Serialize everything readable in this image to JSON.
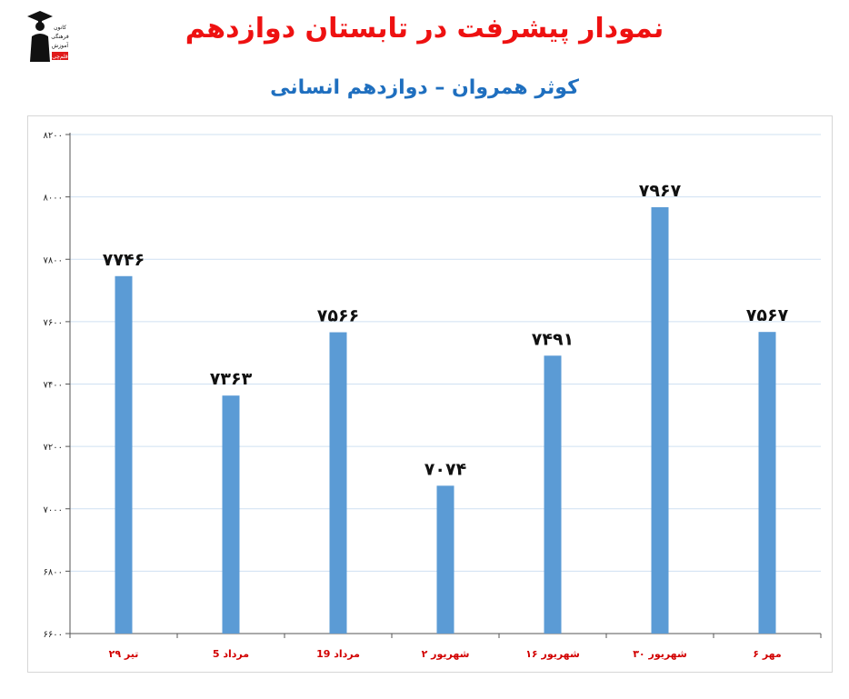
{
  "header": {
    "title": "نمودار پیشرفت در تابستان دوازدهم",
    "subtitle": "کوثر همروان – دوازدهم انسانی",
    "logo_text": [
      "کانون",
      "فرهنگی",
      "آموزش",
      "قلم‌چی"
    ],
    "logo_icon": "graduate-icon"
  },
  "colors": {
    "title": "#ee1111",
    "subtitle": "#1f6fbf",
    "bar": "#5b9bd5",
    "category_label": "#d20000",
    "gridline": "#cfe0f2"
  },
  "chart_data": {
    "type": "bar",
    "title": "",
    "xlabel": "",
    "ylabel": "",
    "categories": [
      "۲۹ تیر",
      "5 مرداد",
      "19 مرداد",
      "۲ شهریور",
      "۱۶ شهریور",
      "۳۰ شهریور",
      "۶ مهر"
    ],
    "values": [
      7746,
      7363,
      7566,
      7074,
      7491,
      7967,
      7567
    ],
    "value_labels": [
      "۷۷۴۶",
      "۷۳۶۳",
      "۷۵۶۶",
      "۷۰۷۴",
      "۷۴۹۱",
      "۷۹۶۷",
      "۷۵۶۷"
    ],
    "ylim": [
      6600,
      8200
    ],
    "yticks": [
      6600,
      6800,
      7000,
      7200,
      7400,
      7600,
      7800,
      8000,
      8200
    ],
    "ytick_labels": [
      "۶۶۰۰",
      "۶۸۰۰",
      "۷۰۰۰",
      "۷۲۰۰",
      "۷۴۰۰",
      "۷۶۰۰",
      "۷۸۰۰",
      "۸۰۰۰",
      "۸۲۰۰"
    ],
    "grid": true,
    "legend": "none"
  }
}
